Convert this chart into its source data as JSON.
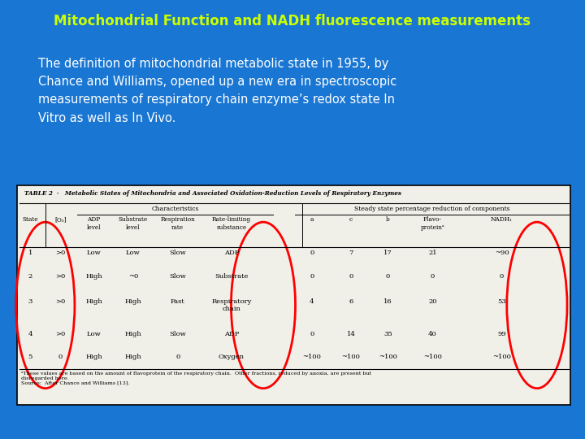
{
  "title": "Mitochondrial Function and NADH fluorescence measurements",
  "title_color": "#CCFF00",
  "title_bg_color": "#1565C0",
  "body_bg_color": "#1976D2",
  "body_text": "The definition of mitochondrial metabolic state in 1955, by\nChance and Williams, opened up a new era in spectroscopic\nmeasurements of respiratory chain enzyme’s redox state In\nVitro as well as In Vivo.",
  "body_text_color": "#FFFFFF",
  "table_title": "TABLE 2  ·   Metabolic States of Mitochondria and Associated Oxidation-Reduction Levels of Respiratory Enzymes",
  "col_headers_row2": [
    "State",
    "[O₂]",
    "ADP\nlevel",
    "Substrate\nlevel",
    "Respiration\nrate",
    "Rate-limiting\nsubstance",
    "a",
    "c",
    "b",
    "Flavo-\nproteinᵃ",
    "NADH₁"
  ],
  "table_rows": [
    [
      "1",
      ">0",
      "Low",
      "Low",
      "Slow",
      "ADP",
      "0",
      "7",
      "17",
      "21",
      "~90"
    ],
    [
      "2",
      ">0",
      "High",
      "~0",
      "Slow",
      "Substrate",
      "0",
      "0",
      "0",
      "0",
      "0"
    ],
    [
      "3",
      ">0",
      "High",
      "High",
      "Fast",
      "Respiratory\nchain",
      "4",
      "6",
      "16",
      "20",
      "53"
    ],
    [
      "4",
      ">0",
      "Low",
      "High",
      "Slow",
      "ADP",
      "0",
      "14",
      "35",
      "40",
      "99"
    ],
    [
      "5",
      "0",
      "High",
      "High",
      "0",
      "Oxygen",
      "~100",
      "~100",
      "~100",
      "~100",
      "~100"
    ]
  ],
  "footnote": "ᵃThese values are based on the amount of flavoprotein of the respiratory chain.  Other fractions, reduced by anoxia, are present but\ndisregarded here.\nSource:  After Chance and Williams [13].",
  "circle_color": "#FF0000",
  "table_bg_color": "#F0EFE8",
  "bottom_bg_color": "#1565C0"
}
